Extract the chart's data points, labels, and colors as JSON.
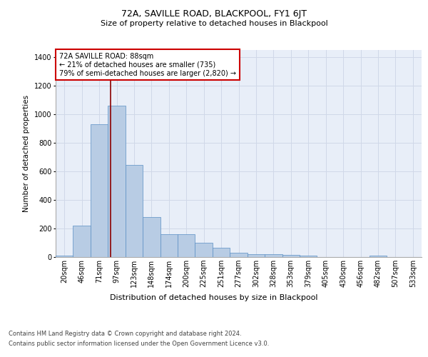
{
  "title": "72A, SAVILLE ROAD, BLACKPOOL, FY1 6JT",
  "subtitle": "Size of property relative to detached houses in Blackpool",
  "xlabel": "Distribution of detached houses by size in Blackpool",
  "ylabel": "Number of detached properties",
  "footer_line1": "Contains HM Land Registry data © Crown copyright and database right 2024.",
  "footer_line2": "Contains public sector information licensed under the Open Government Licence v3.0.",
  "categories": [
    "20sqm",
    "46sqm",
    "71sqm",
    "97sqm",
    "123sqm",
    "148sqm",
    "174sqm",
    "200sqm",
    "225sqm",
    "251sqm",
    "277sqm",
    "302sqm",
    "328sqm",
    "353sqm",
    "379sqm",
    "405sqm",
    "430sqm",
    "456sqm",
    "482sqm",
    "507sqm",
    "533sqm"
  ],
  "values": [
    10,
    220,
    930,
    1060,
    645,
    280,
    158,
    158,
    100,
    65,
    32,
    20,
    20,
    15,
    12,
    0,
    0,
    0,
    10,
    0,
    0
  ],
  "bar_color": "#b8cce4",
  "bar_edge_color": "#5a8fc4",
  "grid_color": "#d0d8e8",
  "background_color": "#e8eef8",
  "annotation_box_text": "72A SAVILLE ROAD: 88sqm\n← 21% of detached houses are smaller (735)\n79% of semi-detached houses are larger (2,820) →",
  "vline_color": "#8b0000",
  "ylim": [
    0,
    1450
  ],
  "yticks": [
    0,
    200,
    400,
    600,
    800,
    1000,
    1200,
    1400
  ],
  "title_fontsize": 9,
  "subtitle_fontsize": 8,
  "ylabel_fontsize": 7.5,
  "xlabel_fontsize": 8,
  "tick_fontsize": 7,
  "footer_fontsize": 6,
  "annot_fontsize": 7
}
